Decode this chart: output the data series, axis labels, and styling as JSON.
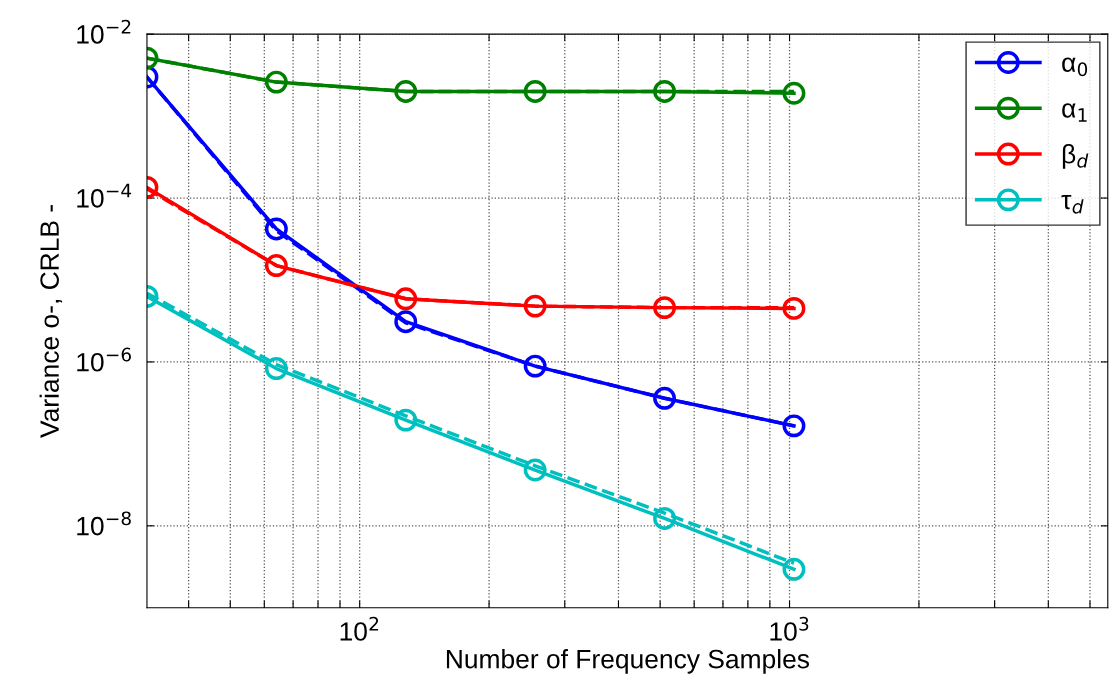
{
  "chart_data": {
    "type": "line",
    "xlabel": "Number of Frequency Samples",
    "ylabel": "Variance o-, CRLB -",
    "log": "xy",
    "x": [
      32,
      64,
      128,
      256,
      512,
      1024
    ],
    "xlim": [
      32,
      5500
    ],
    "xticks": [
      {
        "value": 40,
        "label": null
      },
      {
        "value": 50,
        "label": null
      },
      {
        "value": 60,
        "label": null
      },
      {
        "value": 70,
        "label": null
      },
      {
        "value": 80,
        "label": null
      },
      {
        "value": 90,
        "label": null
      },
      {
        "value": 100,
        "label": "10$^{2}$"
      },
      {
        "value": 200,
        "label": null
      },
      {
        "value": 300,
        "label": null
      },
      {
        "value": 400,
        "label": null
      },
      {
        "value": 500,
        "label": null
      },
      {
        "value": 600,
        "label": null
      },
      {
        "value": 700,
        "label": null
      },
      {
        "value": 800,
        "label": null
      },
      {
        "value": 900,
        "label": null
      },
      {
        "value": 1000,
        "label": "10$^{3}$"
      },
      {
        "value": 2000,
        "label": null
      },
      {
        "value": 3000,
        "label": null
      },
      {
        "value": 4000,
        "label": null
      },
      {
        "value": 5000,
        "label": null
      }
    ],
    "ylim": [
      1e-09,
      0.01
    ],
    "yticks": [
      {
        "value": 0.01,
        "label": "10$^{−2}$"
      },
      {
        "value": 0.0001,
        "label": "10$^{−4}$"
      },
      {
        "value": 1e-06,
        "label": "10$^{−6}$"
      },
      {
        "value": 1e-08,
        "label": "10$^{−8}$"
      }
    ],
    "grid": true,
    "legend": "top right",
    "series": [
      {
        "name": "α$_{0}$",
        "color": "#0000ff",
        "line_style": "solid",
        "marker": "circle",
        "values": [
          0.003,
          4.2e-05,
          3.1e-06,
          8.9e-07,
          3.6e-07,
          1.66e-07
        ]
      },
      {
        "name": "α$_{1}$",
        "color": "#008000",
        "line_style": "solid",
        "marker": "circle",
        "values": [
          0.0051,
          0.0026,
          0.002,
          0.002,
          0.002,
          0.0019
        ]
      },
      {
        "name": "β$_{d}$",
        "color": "#ff0000",
        "line_style": "solid",
        "marker": "circle",
        "values": [
          0.000135,
          1.5e-05,
          5.9e-06,
          4.8e-06,
          4.6e-06,
          4.5e-06
        ]
      },
      {
        "name": "τ$_{d}$",
        "color": "#00bfbf",
        "line_style": "solid",
        "marker": "circle",
        "values": [
          6.3e-06,
          8.3e-07,
          1.95e-07,
          4.8e-08,
          1.23e-08,
          2.95e-09
        ]
      },
      {
        "color": "#0000ff",
        "line_style": "dashed",
        "marker": "none",
        "values": [
          0.003,
          4e-05,
          3e-06,
          8.9e-07,
          3.6e-07,
          1.66e-07
        ]
      },
      {
        "color": "#008000",
        "line_style": "dashed",
        "marker": "none",
        "values": [
          0.0051,
          0.0026,
          0.002,
          0.002,
          0.002,
          0.002
        ]
      },
      {
        "color": "#ff0000",
        "line_style": "dashed",
        "marker": "none",
        "values": [
          0.00013,
          1.5e-05,
          5.9e-06,
          4.8e-06,
          4.6e-06,
          4.6e-06
        ]
      },
      {
        "color": "#00bfbf",
        "line_style": "dashed",
        "marker": "none",
        "values": [
          6.9e-06,
          9.3e-07,
          2.2e-07,
          5.4e-08,
          1.43e-08,
          3.5e-09
        ]
      }
    ]
  }
}
